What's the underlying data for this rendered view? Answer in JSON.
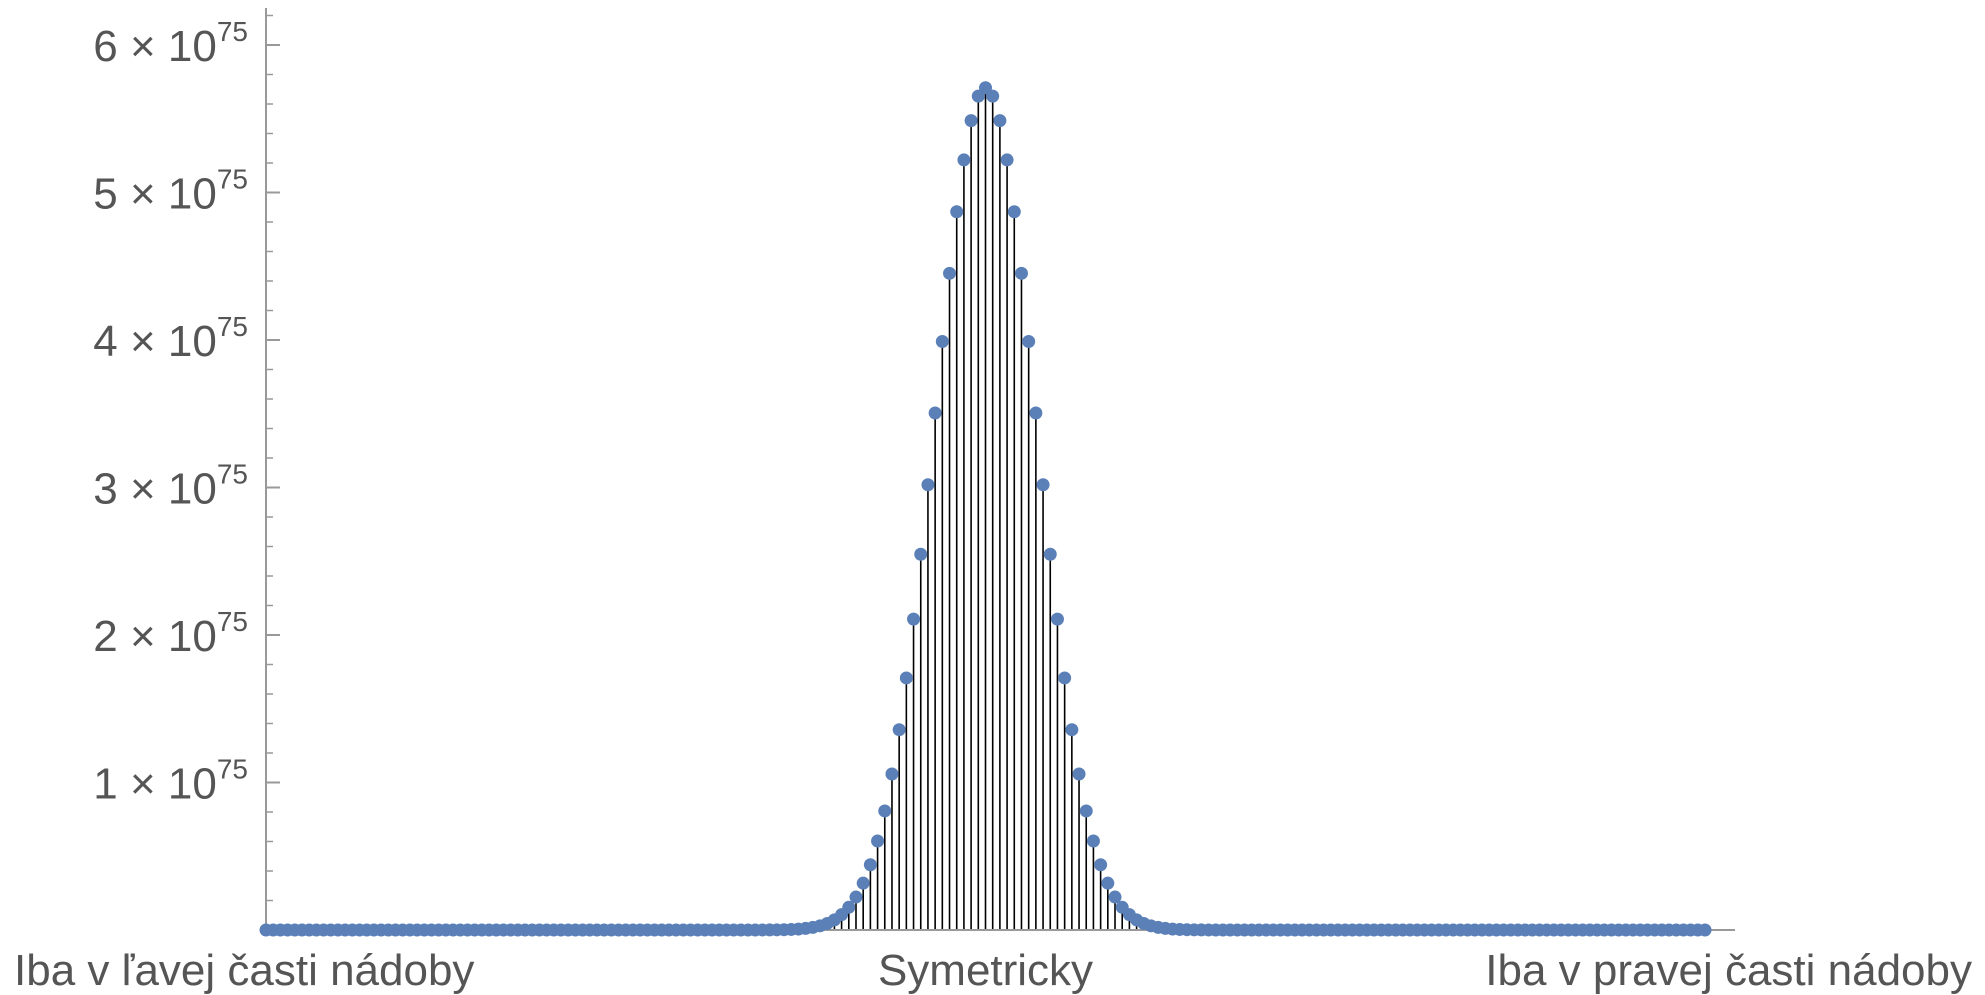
{
  "chart_data": {
    "type": "scatter",
    "style": "stem-plot",
    "title": "",
    "xlabel": "",
    "ylabel": "",
    "x_range": [
      0,
      200
    ],
    "ylim": [
      0,
      6.3e+75
    ],
    "grid": false,
    "legend": "none",
    "y_ticks": [
      {
        "value": 1e+75,
        "mantissa": "1",
        "times": "×",
        "base": "10",
        "exponent": "75"
      },
      {
        "value": 2e+75,
        "mantissa": "2",
        "times": "×",
        "base": "10",
        "exponent": "75"
      },
      {
        "value": 3e+75,
        "mantissa": "3",
        "times": "×",
        "base": "10",
        "exponent": "75"
      },
      {
        "value": 4e+75,
        "mantissa": "4",
        "times": "×",
        "base": "10",
        "exponent": "75"
      },
      {
        "value": 5e+75,
        "mantissa": "5",
        "times": "×",
        "base": "10",
        "exponent": "75"
      },
      {
        "value": 6e+75,
        "mantissa": "6",
        "times": "×",
        "base": "10",
        "exponent": "75"
      }
    ],
    "x_tick_labels": [
      {
        "x": 0,
        "label": "Iba v ľavej časti nádoby"
      },
      {
        "x": 100,
        "label": "Symetricky"
      },
      {
        "x": 200,
        "label": "Iba v pravej časti nádoby"
      }
    ],
    "series": [
      {
        "distribution": "binomial",
        "n": 200,
        "peak_x": 100,
        "peak_value": 5.71e+75,
        "point_color": "#5b80b8",
        "stem_color": "#000000"
      }
    ]
  }
}
